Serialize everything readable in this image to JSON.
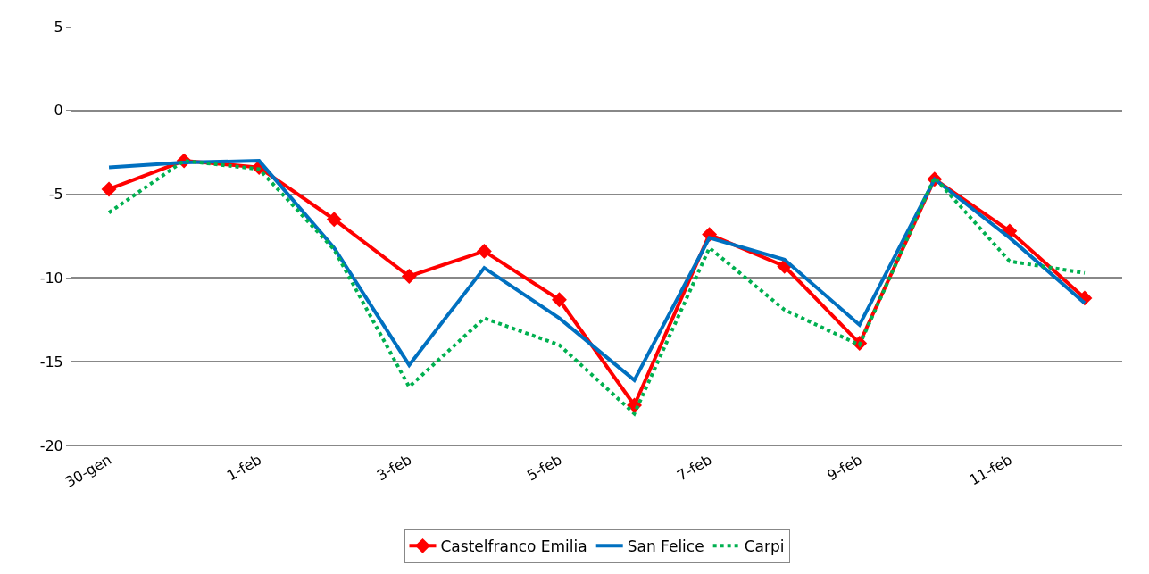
{
  "chart_data": {
    "type": "line",
    "categories": [
      "30-gen",
      null,
      "1-feb",
      null,
      "3-feb",
      null,
      "5-feb",
      null,
      "7-feb",
      null,
      "9-feb",
      null,
      "11-feb",
      null
    ],
    "series": [
      {
        "name": "Castelfranco Emilia",
        "color": "#ff0000",
        "marker": "diamond",
        "line_style": "solid",
        "values": [
          -4.7,
          -3.0,
          -3.4,
          -6.5,
          -9.9,
          -8.4,
          -11.3,
          -17.6,
          -7.4,
          -9.3,
          -13.9,
          -4.1,
          -7.2,
          -11.2
        ]
      },
      {
        "name": "San Felice",
        "color": "#0070c0",
        "marker": "none",
        "line_style": "solid",
        "values": [
          -3.4,
          -3.1,
          -3.0,
          -8.2,
          -15.2,
          -9.4,
          -12.4,
          -16.1,
          -7.6,
          -8.9,
          -12.8,
          -4.1,
          -7.6,
          -11.5
        ]
      },
      {
        "name": "Carpi",
        "color": "#00b050",
        "marker": "none",
        "line_style": "dotted",
        "values": [
          -6.1,
          -3.0,
          -3.5,
          -8.3,
          -16.5,
          -12.4,
          -14.0,
          -18.1,
          -8.2,
          -11.9,
          -14.0,
          -4.0,
          -9.0,
          -9.7
        ]
      }
    ],
    "ylim": [
      -20,
      5
    ],
    "yticks": [
      -20,
      -15,
      -10,
      -5,
      0,
      5
    ],
    "grid": "y",
    "legend": "bottom"
  }
}
